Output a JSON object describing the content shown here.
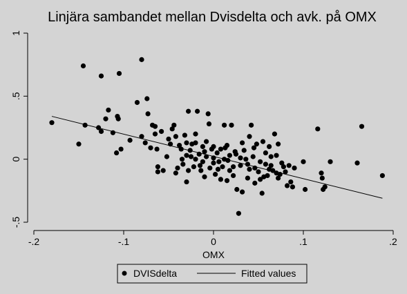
{
  "chart_data": {
    "type": "scatter",
    "title": "Linjära sambandet mellan Dvisdelta  och avk. på OMX",
    "xlabel": "OMX",
    "ylabel": "",
    "xlim": [
      -0.2,
      0.2
    ],
    "ylim": [
      -0.5,
      1
    ],
    "x_ticks": [
      -0.2,
      -0.1,
      0,
      0.1,
      0.2
    ],
    "x_tick_labels": [
      "-.2",
      "-.1",
      "0",
      ".1",
      ".2"
    ],
    "y_ticks": [
      -0.5,
      0,
      0.5,
      1
    ],
    "y_tick_labels": [
      "-.5",
      "0",
      ".5",
      "1"
    ],
    "grid": false,
    "legend_position": "bottom-center",
    "series": [
      {
        "name": "DVISdelta",
        "kind": "scatter",
        "color": "#000000",
        "points": [
          [
            -0.18,
            0.29
          ],
          [
            -0.15,
            0.12
          ],
          [
            -0.145,
            0.74
          ],
          [
            -0.143,
            0.27
          ],
          [
            -0.128,
            0.25
          ],
          [
            -0.125,
            0.66
          ],
          [
            -0.125,
            0.22
          ],
          [
            -0.12,
            0.32
          ],
          [
            -0.117,
            0.39
          ],
          [
            -0.112,
            0.21
          ],
          [
            -0.108,
            0.05
          ],
          [
            -0.107,
            0.34
          ],
          [
            -0.106,
            0.32
          ],
          [
            -0.105,
            0.68
          ],
          [
            -0.103,
            0.08
          ],
          [
            -0.093,
            0.15
          ],
          [
            -0.085,
            0.45
          ],
          [
            -0.08,
            0.79
          ],
          [
            -0.08,
            0.18
          ],
          [
            -0.076,
            0.13
          ],
          [
            -0.074,
            0.48
          ],
          [
            -0.073,
            0.36
          ],
          [
            -0.07,
            0.09
          ],
          [
            -0.068,
            0.27
          ],
          [
            -0.065,
            0.2
          ],
          [
            -0.065,
            0.26
          ],
          [
            -0.063,
            0.08
          ],
          [
            -0.062,
            -0.06
          ],
          [
            -0.062,
            -0.1
          ],
          [
            -0.058,
            0.22
          ],
          [
            -0.056,
            -0.09
          ],
          [
            -0.052,
            0.02
          ],
          [
            -0.05,
            0.16
          ],
          [
            -0.048,
            0.12
          ],
          [
            -0.046,
            0.24
          ],
          [
            -0.044,
            0.27
          ],
          [
            -0.042,
            0.18
          ],
          [
            -0.042,
            -0.11
          ],
          [
            -0.04,
            -0.07
          ],
          [
            -0.038,
            0.11
          ],
          [
            -0.036,
            0.08
          ],
          [
            -0.034,
            -0.04
          ],
          [
            -0.032,
            0.19
          ],
          [
            -0.03,
            0.03
          ],
          [
            -0.03,
            -0.18
          ],
          [
            -0.028,
            0.38
          ],
          [
            -0.026,
            0.07
          ],
          [
            -0.024,
            0.12
          ],
          [
            -0.022,
            -0.06
          ],
          [
            -0.02,
            0.0
          ],
          [
            -0.02,
            0.13
          ],
          [
            -0.018,
            0.38
          ],
          [
            -0.016,
            0.04
          ],
          [
            -0.014,
            -0.09
          ],
          [
            -0.012,
            0.1
          ],
          [
            -0.01,
            0.06
          ],
          [
            -0.01,
            -0.14
          ],
          [
            -0.008,
            0.02
          ],
          [
            -0.006,
            0.36
          ],
          [
            -0.005,
            0.28
          ],
          [
            -0.004,
            -0.07
          ],
          [
            -0.002,
            0.08
          ],
          [
            0.0,
            -0.03
          ],
          [
            0.0,
            0.01
          ],
          [
            0.002,
            -0.12
          ],
          [
            0.004,
            0.05
          ],
          [
            0.006,
            -0.02
          ],
          [
            0.008,
            0.08
          ],
          [
            0.01,
            -0.06
          ],
          [
            0.012,
            0.27
          ],
          [
            0.013,
            0.09
          ],
          [
            0.015,
            -0.17
          ],
          [
            0.016,
            -0.01
          ],
          [
            0.018,
            0.03
          ],
          [
            0.02,
            0.27
          ],
          [
            0.022,
            -0.13
          ],
          [
            0.024,
            0.06
          ],
          [
            0.026,
            -0.24
          ],
          [
            0.028,
            -0.43
          ],
          [
            0.03,
            -0.05
          ],
          [
            0.032,
            -0.26
          ],
          [
            0.034,
            0.07
          ],
          [
            0.036,
            0.0
          ],
          [
            0.038,
            -0.15
          ],
          [
            0.04,
            0.18
          ],
          [
            0.042,
            0.27
          ],
          [
            0.044,
            0.02
          ],
          [
            0.046,
            -0.07
          ],
          [
            0.048,
            0.12
          ],
          [
            0.05,
            -0.1
          ],
          [
            0.052,
            -0.02
          ],
          [
            0.054,
            -0.27
          ],
          [
            0.056,
            -0.14
          ],
          [
            0.058,
            0.05
          ],
          [
            0.06,
            -0.13
          ],
          [
            0.062,
            0.1
          ],
          [
            0.064,
            -0.05
          ],
          [
            0.066,
            -0.09
          ],
          [
            0.068,
            0.2
          ],
          [
            0.07,
            0.03
          ],
          [
            0.072,
            0.12
          ],
          [
            0.074,
            -0.12
          ],
          [
            0.076,
            -0.03
          ],
          [
            0.078,
            -0.06
          ],
          [
            0.08,
            -0.1
          ],
          [
            0.082,
            -0.21
          ],
          [
            0.084,
            -0.05
          ],
          [
            0.086,
            -0.18
          ],
          [
            0.088,
            -0.22
          ],
          [
            0.1,
            -0.02
          ],
          [
            0.102,
            -0.24
          ],
          [
            0.116,
            0.24
          ],
          [
            0.12,
            -0.11
          ],
          [
            0.121,
            -0.15
          ],
          [
            0.122,
            -0.24
          ],
          [
            0.124,
            -0.22
          ],
          [
            0.13,
            -0.02
          ],
          [
            0.16,
            -0.03
          ],
          [
            0.165,
            0.26
          ],
          [
            0.188,
            -0.13
          ],
          [
            -0.03,
            0.13
          ],
          [
            -0.025,
            0.02
          ],
          [
            -0.015,
            -0.05
          ],
          [
            -0.008,
            0.14
          ],
          [
            0.005,
            -0.08
          ],
          [
            0.012,
            0.0
          ],
          [
            0.018,
            -0.09
          ],
          [
            0.025,
            0.04
          ],
          [
            0.032,
            0.13
          ],
          [
            0.038,
            -0.04
          ],
          [
            0.045,
            0.09
          ],
          [
            0.052,
            -0.16
          ],
          [
            0.058,
            -0.04
          ],
          [
            0.064,
            0.02
          ],
          [
            0.07,
            -0.11
          ],
          [
            -0.035,
            0.0
          ],
          [
            -0.028,
            -0.09
          ],
          [
            -0.02,
            0.2
          ],
          [
            -0.012,
            -0.02
          ],
          [
            0.0,
            0.1
          ],
          [
            0.008,
            -0.16
          ],
          [
            0.015,
            0.11
          ],
          [
            0.022,
            -0.06
          ],
          [
            0.03,
            0.01
          ],
          [
            0.04,
            -0.08
          ],
          [
            0.046,
            -0.19
          ],
          [
            0.055,
            0.14
          ],
          [
            0.062,
            -0.08
          ],
          [
            0.072,
            -0.15
          ],
          [
            0.09,
            -0.07
          ]
        ]
      },
      {
        "name": "Fitted values",
        "kind": "line",
        "color": "#000000",
        "points": [
          [
            -0.18,
            0.34
          ],
          [
            0.188,
            -0.31
          ]
        ]
      }
    ]
  }
}
